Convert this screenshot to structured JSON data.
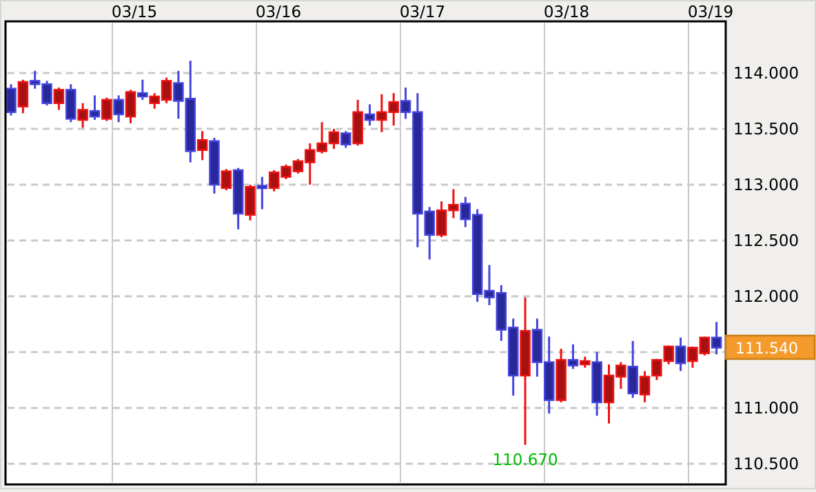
{
  "window": {
    "background_color": "#f0efed",
    "plot_background_color": "#ffffff",
    "plot_border_color": "#000000"
  },
  "chart_data": {
    "type": "candlestick",
    "title": "",
    "xlabel": "",
    "ylabel": "",
    "legend": "none",
    "grid": "on",
    "x_axis": {
      "position": "top",
      "dates": [
        "03/15",
        "03/16",
        "03/17",
        "03/18",
        "03/19"
      ]
    },
    "y_axis": {
      "position": "right",
      "ylim": [
        110.4,
        114.45
      ],
      "ticks": [
        {
          "value": 114.0,
          "label": "114.000",
          "show_label": true
        },
        {
          "value": 113.5,
          "label": "113.500",
          "show_label": true
        },
        {
          "value": 113.0,
          "label": "113.000",
          "show_label": true
        },
        {
          "value": 112.5,
          "label": "112.500",
          "show_label": true
        },
        {
          "value": 112.0,
          "label": "112.000",
          "show_label": true
        },
        {
          "value": 111.5,
          "label": "111.500",
          "show_label": false
        },
        {
          "value": 111.0,
          "label": "111.000",
          "show_label": true
        },
        {
          "value": 110.5,
          "label": "110.500",
          "show_label": true
        }
      ]
    },
    "current_price": {
      "label": "111.540",
      "value": 111.54
    },
    "low_annotation": {
      "label": "110.670",
      "value": 110.67,
      "candle_index": 43
    },
    "colors": {
      "up_fill": "#a81111",
      "up_stroke": "#ee1212",
      "down_fill": "#28289b",
      "down_stroke": "#4444dd",
      "grid": "#c9c9c9",
      "badge_fill": "#f49b2b",
      "badge_border": "#c97d15",
      "badge_text": "#ffffff",
      "low_text": "#00bb00",
      "axis_text": "#000000"
    },
    "candles": [
      {
        "t": "down",
        "o": 113.86,
        "h": 113.9,
        "l": 113.62,
        "c": 113.65
      },
      {
        "t": "up",
        "o": 113.7,
        "h": 113.94,
        "l": 113.64,
        "c": 113.92
      },
      {
        "t": "down",
        "o": 113.93,
        "h": 114.02,
        "l": 113.86,
        "c": 113.9
      },
      {
        "t": "down",
        "o": 113.9,
        "h": 113.93,
        "l": 113.71,
        "c": 113.73
      },
      {
        "t": "up",
        "o": 113.73,
        "h": 113.87,
        "l": 113.67,
        "c": 113.85
      },
      {
        "t": "down",
        "o": 113.85,
        "h": 113.9,
        "l": 113.56,
        "c": 113.59
      },
      {
        "t": "up",
        "o": 113.58,
        "h": 113.73,
        "l": 113.51,
        "c": 113.67
      },
      {
        "t": "down",
        "o": 113.66,
        "h": 113.8,
        "l": 113.58,
        "c": 113.61
      },
      {
        "t": "up",
        "o": 113.59,
        "h": 113.78,
        "l": 113.57,
        "c": 113.76
      },
      {
        "t": "down",
        "o": 113.76,
        "h": 113.8,
        "l": 113.56,
        "c": 113.63
      },
      {
        "t": "up",
        "o": 113.61,
        "h": 113.85,
        "l": 113.55,
        "c": 113.83
      },
      {
        "t": "down",
        "o": 113.82,
        "h": 113.94,
        "l": 113.76,
        "c": 113.79
      },
      {
        "t": "up",
        "o": 113.73,
        "h": 113.82,
        "l": 113.68,
        "c": 113.79
      },
      {
        "t": "up",
        "o": 113.76,
        "h": 113.96,
        "l": 113.73,
        "c": 113.93
      },
      {
        "t": "down",
        "o": 113.91,
        "h": 114.02,
        "l": 113.59,
        "c": 113.75
      },
      {
        "t": "down",
        "o": 113.77,
        "h": 114.11,
        "l": 113.2,
        "c": 113.3
      },
      {
        "t": "up",
        "o": 113.31,
        "h": 113.48,
        "l": 113.22,
        "c": 113.4
      },
      {
        "t": "down",
        "o": 113.39,
        "h": 113.42,
        "l": 112.92,
        "c": 113.0
      },
      {
        "t": "up",
        "o": 112.97,
        "h": 113.14,
        "l": 112.95,
        "c": 113.12
      },
      {
        "t": "down",
        "o": 113.13,
        "h": 113.15,
        "l": 112.6,
        "c": 112.74
      },
      {
        "t": "up",
        "o": 112.73,
        "h": 113.0,
        "l": 112.68,
        "c": 112.98
      },
      {
        "t": "down",
        "o": 112.99,
        "h": 113.07,
        "l": 112.78,
        "c": 112.97
      },
      {
        "t": "up",
        "o": 112.97,
        "h": 113.13,
        "l": 112.94,
        "c": 113.11
      },
      {
        "t": "up",
        "o": 113.07,
        "h": 113.18,
        "l": 113.05,
        "c": 113.16
      },
      {
        "t": "up",
        "o": 113.12,
        "h": 113.23,
        "l": 113.1,
        "c": 113.21
      },
      {
        "t": "up",
        "o": 113.2,
        "h": 113.37,
        "l": 113.0,
        "c": 113.31
      },
      {
        "t": "up",
        "o": 113.3,
        "h": 113.56,
        "l": 113.28,
        "c": 113.37
      },
      {
        "t": "up",
        "o": 113.37,
        "h": 113.5,
        "l": 113.32,
        "c": 113.47
      },
      {
        "t": "down",
        "o": 113.46,
        "h": 113.48,
        "l": 113.33,
        "c": 113.36
      },
      {
        "t": "up",
        "o": 113.37,
        "h": 113.76,
        "l": 113.35,
        "c": 113.65
      },
      {
        "t": "down",
        "o": 113.63,
        "h": 113.72,
        "l": 113.53,
        "c": 113.58
      },
      {
        "t": "up",
        "o": 113.58,
        "h": 113.81,
        "l": 113.47,
        "c": 113.65
      },
      {
        "t": "up",
        "o": 113.65,
        "h": 113.82,
        "l": 113.53,
        "c": 113.74
      },
      {
        "t": "down",
        "o": 113.75,
        "h": 113.87,
        "l": 113.59,
        "c": 113.65
      },
      {
        "t": "down",
        "o": 113.65,
        "h": 113.82,
        "l": 112.44,
        "c": 112.74
      },
      {
        "t": "down",
        "o": 112.76,
        "h": 112.8,
        "l": 112.33,
        "c": 112.55
      },
      {
        "t": "up",
        "o": 112.55,
        "h": 112.85,
        "l": 112.53,
        "c": 112.77
      },
      {
        "t": "up",
        "o": 112.77,
        "h": 112.96,
        "l": 112.7,
        "c": 112.82
      },
      {
        "t": "down",
        "o": 112.83,
        "h": 112.89,
        "l": 112.62,
        "c": 112.69
      },
      {
        "t": "down",
        "o": 112.73,
        "h": 112.78,
        "l": 111.95,
        "c": 112.02
      },
      {
        "t": "down",
        "o": 112.05,
        "h": 112.28,
        "l": 111.92,
        "c": 111.99
      },
      {
        "t": "down",
        "o": 112.03,
        "h": 112.1,
        "l": 111.6,
        "c": 111.7
      },
      {
        "t": "down",
        "o": 111.72,
        "h": 111.8,
        "l": 111.11,
        "c": 111.29
      },
      {
        "t": "up",
        "o": 111.29,
        "h": 111.99,
        "l": 110.67,
        "c": 111.69
      },
      {
        "t": "down",
        "o": 111.7,
        "h": 111.8,
        "l": 111.28,
        "c": 111.41
      },
      {
        "t": "down",
        "o": 111.41,
        "h": 111.64,
        "l": 110.95,
        "c": 111.07
      },
      {
        "t": "up",
        "o": 111.07,
        "h": 111.53,
        "l": 111.05,
        "c": 111.43
      },
      {
        "t": "down",
        "o": 111.43,
        "h": 111.57,
        "l": 111.35,
        "c": 111.38
      },
      {
        "t": "up",
        "o": 111.39,
        "h": 111.46,
        "l": 111.36,
        "c": 111.42
      },
      {
        "t": "down",
        "o": 111.41,
        "h": 111.5,
        "l": 110.93,
        "c": 111.05
      },
      {
        "t": "up",
        "o": 111.05,
        "h": 111.39,
        "l": 110.86,
        "c": 111.29
      },
      {
        "t": "up",
        "o": 111.28,
        "h": 111.41,
        "l": 111.17,
        "c": 111.38
      },
      {
        "t": "down",
        "o": 111.37,
        "h": 111.6,
        "l": 111.09,
        "c": 111.13
      },
      {
        "t": "up",
        "o": 111.12,
        "h": 111.33,
        "l": 111.05,
        "c": 111.28
      },
      {
        "t": "up",
        "o": 111.29,
        "h": 111.44,
        "l": 111.25,
        "c": 111.43
      },
      {
        "t": "up",
        "o": 111.42,
        "h": 111.56,
        "l": 111.39,
        "c": 111.55
      },
      {
        "t": "down",
        "o": 111.55,
        "h": 111.63,
        "l": 111.33,
        "c": 111.4
      },
      {
        "t": "up",
        "o": 111.42,
        "h": 111.55,
        "l": 111.36,
        "c": 111.54
      },
      {
        "t": "up",
        "o": 111.49,
        "h": 111.64,
        "l": 111.47,
        "c": 111.63
      },
      {
        "t": "down",
        "o": 111.63,
        "h": 111.77,
        "l": 111.48,
        "c": 111.54
      }
    ]
  }
}
